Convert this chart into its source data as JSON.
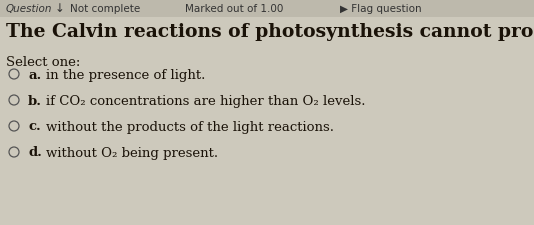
{
  "bg_color": "#cdc9bc",
  "header_bg": "#bdb9ac",
  "question_text": "The Calvin reactions of photosynthesis cannot proceed",
  "question_fontsize": 13.5,
  "question_color": "#1a1208",
  "select_text": "Select one:",
  "select_fontsize": 9.5,
  "header_question": "Question",
  "header_arrow": "↓",
  "header_not_complete": "Not complete",
  "header_marked": "Marked out of 1.00",
  "header_flag": "▶ Flag question",
  "header_fontsize": 7.5,
  "header_text_color": "#333333",
  "text_color": "#1a1208",
  "option_fontsize": 9.5,
  "options": [
    {
      "letter": "a.",
      "text": "in the presence of light."
    },
    {
      "letter": "b.",
      "text": "if CO₂ concentrations are higher than O₂ levels."
    },
    {
      "letter": "c.",
      "text": "without the products of the light reactions."
    },
    {
      "letter": "d.",
      "text": "without O₂ being present."
    }
  ]
}
